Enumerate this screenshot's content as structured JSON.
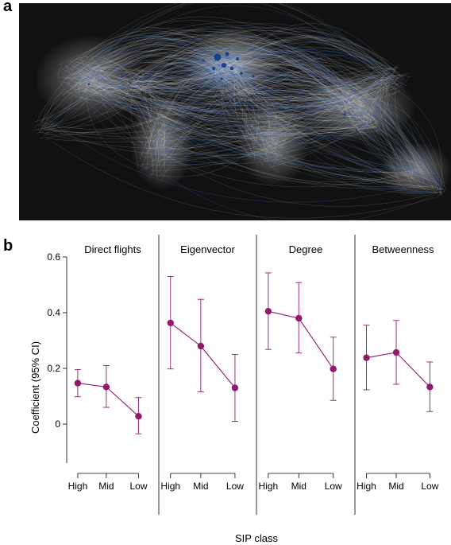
{
  "panels": {
    "a_label": "a",
    "b_label": "b"
  },
  "map_colors": {
    "background": "#111111",
    "routes": "#d9d9d9",
    "hub_routes": "#2f63b3",
    "hub_nodes": "#0d3f8a"
  },
  "chart_data": {
    "type": "scatter",
    "ylabel": "Coefficient (95% CI)",
    "xlabel": "SIP class",
    "ylim": [
      -0.14,
      0.6
    ],
    "yticks": [
      0,
      0.2,
      0.4,
      0.6
    ],
    "ytick_labels": [
      "0",
      "0.2",
      "0.4",
      "0.6"
    ],
    "categories": [
      "High",
      "Mid",
      "Low"
    ],
    "color": "#93196f",
    "grid": false,
    "facets": [
      {
        "title": "Direct flights",
        "values": [
          0.147,
          0.133,
          0.028
        ],
        "lower": [
          0.098,
          0.06,
          -0.035
        ],
        "upper": [
          0.196,
          0.21,
          0.095
        ]
      },
      {
        "title": "Eigenvector",
        "values": [
          0.363,
          0.28,
          0.13
        ],
        "lower": [
          0.198,
          0.116,
          0.01
        ],
        "upper": [
          0.53,
          0.448,
          0.25
        ]
      },
      {
        "title": "Degree",
        "values": [
          0.405,
          0.38,
          0.198
        ],
        "lower": [
          0.268,
          0.255,
          0.085
        ],
        "upper": [
          0.543,
          0.508,
          0.312
        ]
      },
      {
        "title": "Betweenness",
        "values": [
          0.238,
          0.257,
          0.133
        ],
        "lower": [
          0.123,
          0.143,
          0.045
        ],
        "upper": [
          0.355,
          0.372,
          0.223
        ]
      }
    ]
  }
}
